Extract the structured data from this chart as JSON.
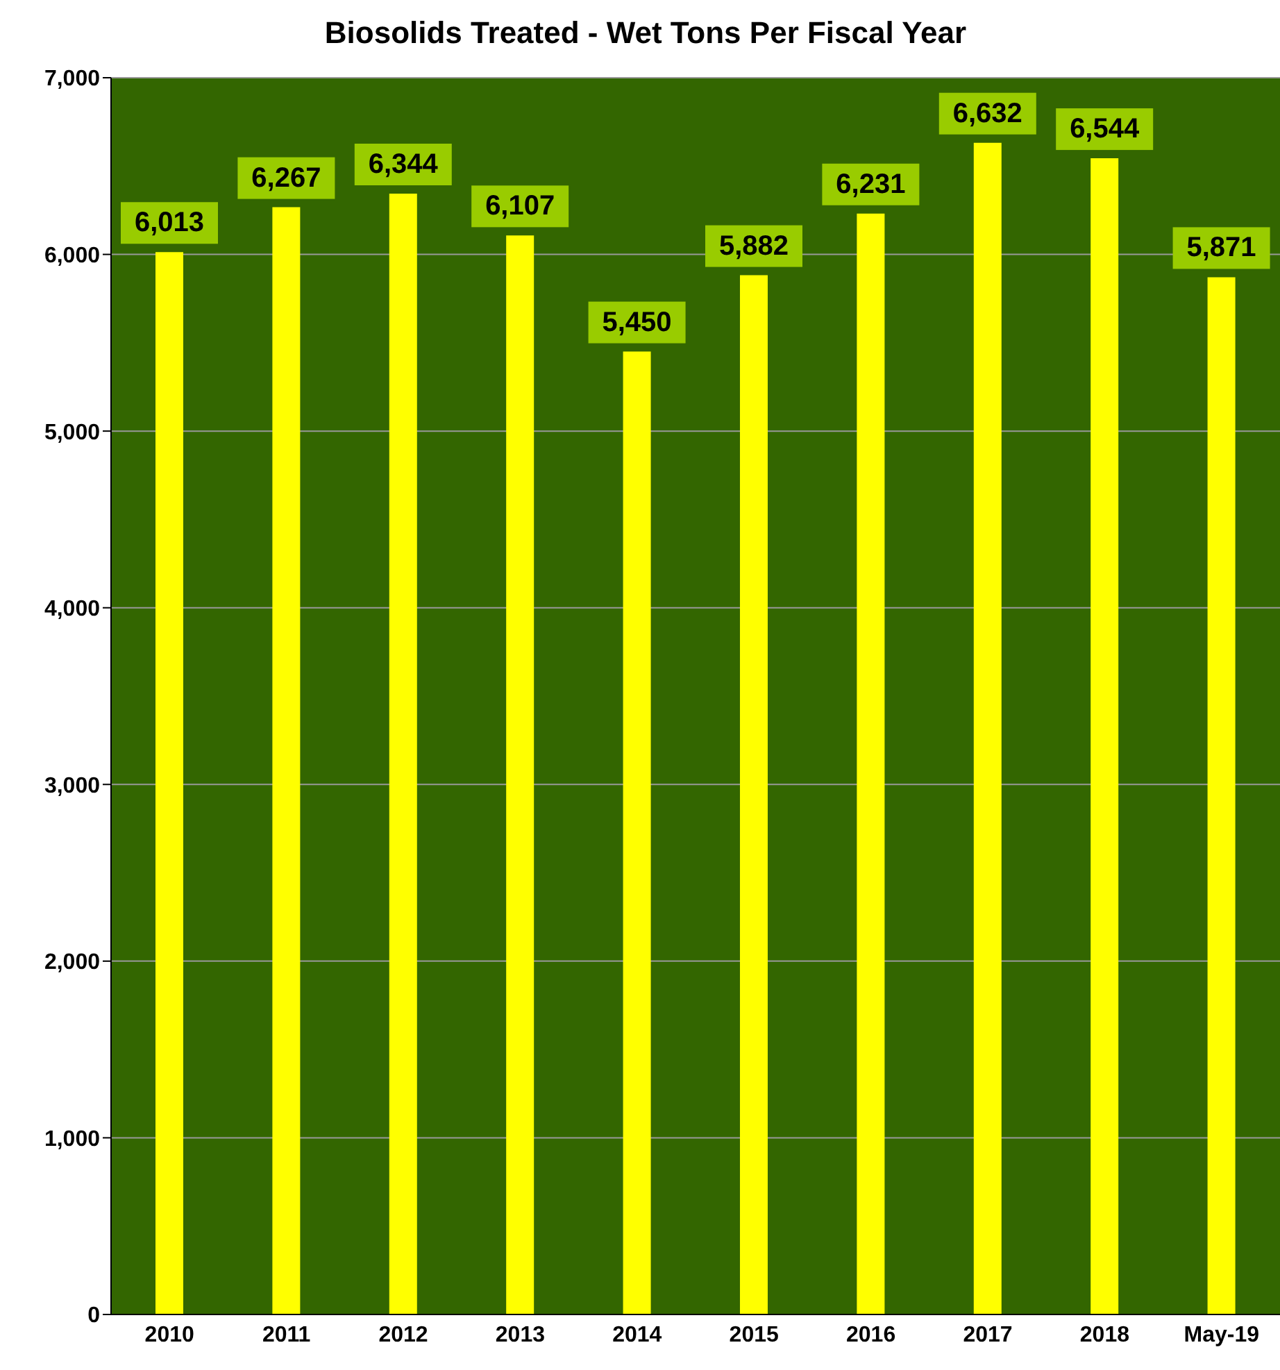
{
  "chart_data": {
    "type": "bar",
    "title": "Biosolids Treated - Wet Tons Per Fiscal Year",
    "categories": [
      "2010",
      "2011",
      "2012",
      "2013",
      "2014",
      "2015",
      "2016",
      "2017",
      "2018",
      "May-19"
    ],
    "values": [
      6013,
      6267,
      6344,
      6107,
      5450,
      5882,
      6231,
      6632,
      6544,
      5871
    ],
    "color": "#ffff00",
    "ylim": [
      0,
      7000
    ],
    "yticks": [
      {
        "value": 0,
        "label": "0"
      },
      {
        "value": 1000,
        "label": "1,000"
      },
      {
        "value": 2000,
        "label": "2,000"
      },
      {
        "value": 3000,
        "label": "3,000"
      },
      {
        "value": 4000,
        "label": "4,000"
      },
      {
        "value": 5000,
        "label": "5,000"
      },
      {
        "value": 6000,
        "label": "6,000"
      },
      {
        "value": 7000,
        "label": "7,000"
      }
    ],
    "value_labels": [
      "6,013",
      "6,267",
      "6,344",
      "6,107",
      "5,450",
      "5,882",
      "6,231",
      "6,632",
      "6,544",
      "5,871"
    ],
    "grid": "y",
    "legend": false
  }
}
